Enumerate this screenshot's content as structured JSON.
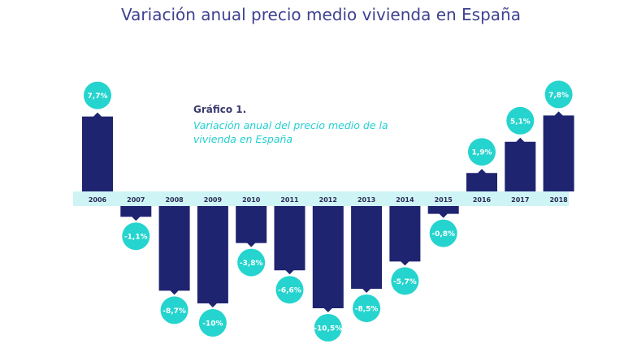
{
  "page": {
    "title": "Variación anual precio medio vivienda en España"
  },
  "figure": {
    "label": "Gráfico 1.",
    "subtitle": "Variación anual del precio medio de la vivienda en España"
  },
  "colors": {
    "bar": "#1f2470",
    "axis_band": "#cff4f5",
    "bubble": "#25d4ce",
    "bubble_text": "#ffffff",
    "title": "#3f4190"
  },
  "chart_data": {
    "type": "bar",
    "title": "Variación anual precio medio vivienda en España",
    "categories": [
      "2006",
      "2007",
      "2008",
      "2009",
      "2010",
      "2011",
      "2012",
      "2013",
      "2014",
      "2015",
      "2016",
      "2017",
      "2018"
    ],
    "values": [
      7.7,
      -1.1,
      -8.7,
      -10,
      -3.8,
      -6.6,
      -10.5,
      -8.5,
      -5.7,
      -0.8,
      1.9,
      5.1,
      7.8
    ],
    "data_labels": [
      "7,7%",
      "-1,1%",
      "-8,7%",
      "-10%",
      "-3,8%",
      "-6,6%",
      "-10,5%",
      "-8,5%",
      "-5,7%",
      "-0,8%",
      "1,9%",
      "5,1%",
      "7,8%"
    ],
    "xlabel": "",
    "ylabel": "",
    "grid": false,
    "legend": "none"
  }
}
